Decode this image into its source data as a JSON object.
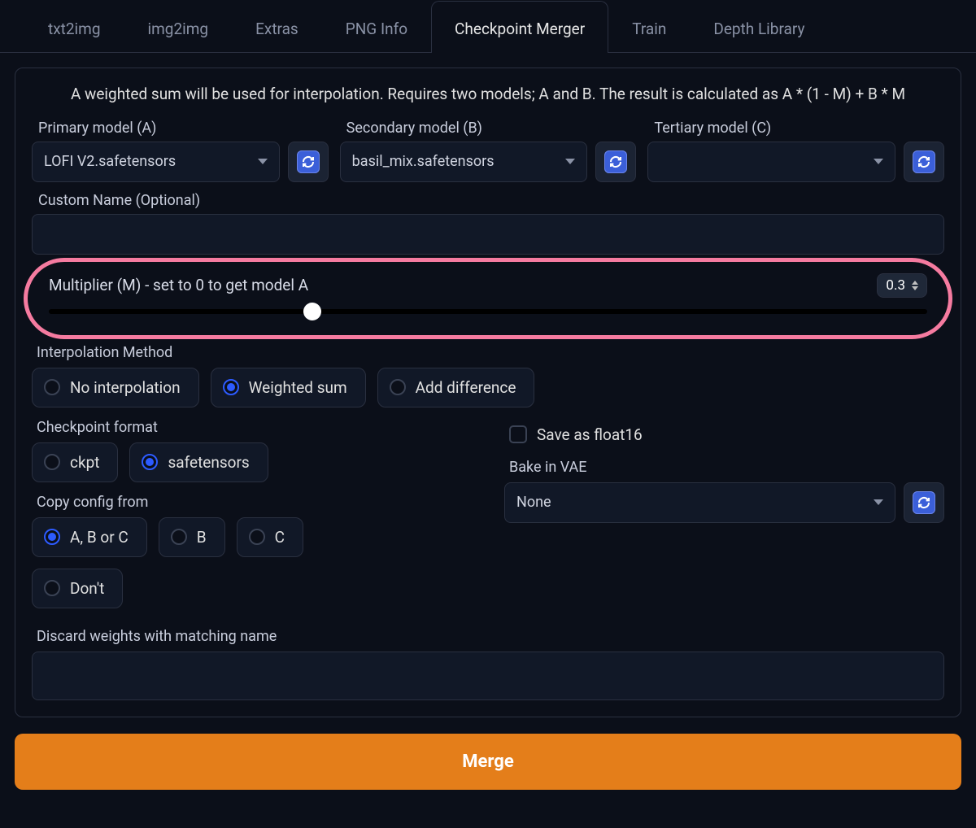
{
  "tabs": {
    "items": [
      "txt2img",
      "img2img",
      "Extras",
      "PNG Info",
      "Checkpoint Merger",
      "Train",
      "Depth Library"
    ],
    "active_index": 4
  },
  "description": "A weighted sum will be used for interpolation. Requires two models; A and B. The result is calculated as A * (1 - M) + B * M",
  "models": {
    "primary": {
      "label": "Primary model (A)",
      "value": "LOFI V2.safetensors"
    },
    "secondary": {
      "label": "Secondary model (B)",
      "value": "basil_mix.safetensors"
    },
    "tertiary": {
      "label": "Tertiary model (C)",
      "value": ""
    }
  },
  "custom_name": {
    "label": "Custom Name (Optional)",
    "value": ""
  },
  "multiplier": {
    "label": "Multiplier (M) - set to 0 to get model A",
    "value": "0.3",
    "min": 0,
    "max": 1,
    "thumb_percent": 30,
    "highlight_color": "#f57ba0"
  },
  "interpolation": {
    "label": "Interpolation Method",
    "options": [
      "No interpolation",
      "Weighted sum",
      "Add difference"
    ],
    "selected_index": 1
  },
  "checkpoint_format": {
    "label": "Checkpoint format",
    "options": [
      "ckpt",
      "safetensors"
    ],
    "selected_index": 1
  },
  "save_float16": {
    "label": "Save as float16",
    "checked": false
  },
  "copy_config": {
    "label": "Copy config from",
    "options": [
      "A, B or C",
      "B",
      "C",
      "Don't"
    ],
    "selected_index": 0
  },
  "bake_vae": {
    "label": "Bake in VAE",
    "value": "None"
  },
  "discard": {
    "label": "Discard weights with matching name",
    "value": ""
  },
  "merge_button": "Merge",
  "colors": {
    "bg": "#0b0f19",
    "panel_border": "#2a3040",
    "text": "#e0e0e0",
    "text_muted": "#8a92a6",
    "input_bg": "#111827",
    "accent": "#2d5bff",
    "refresh_icon_bg": "#3b5fd9",
    "merge_bg": "#e47e1a"
  }
}
